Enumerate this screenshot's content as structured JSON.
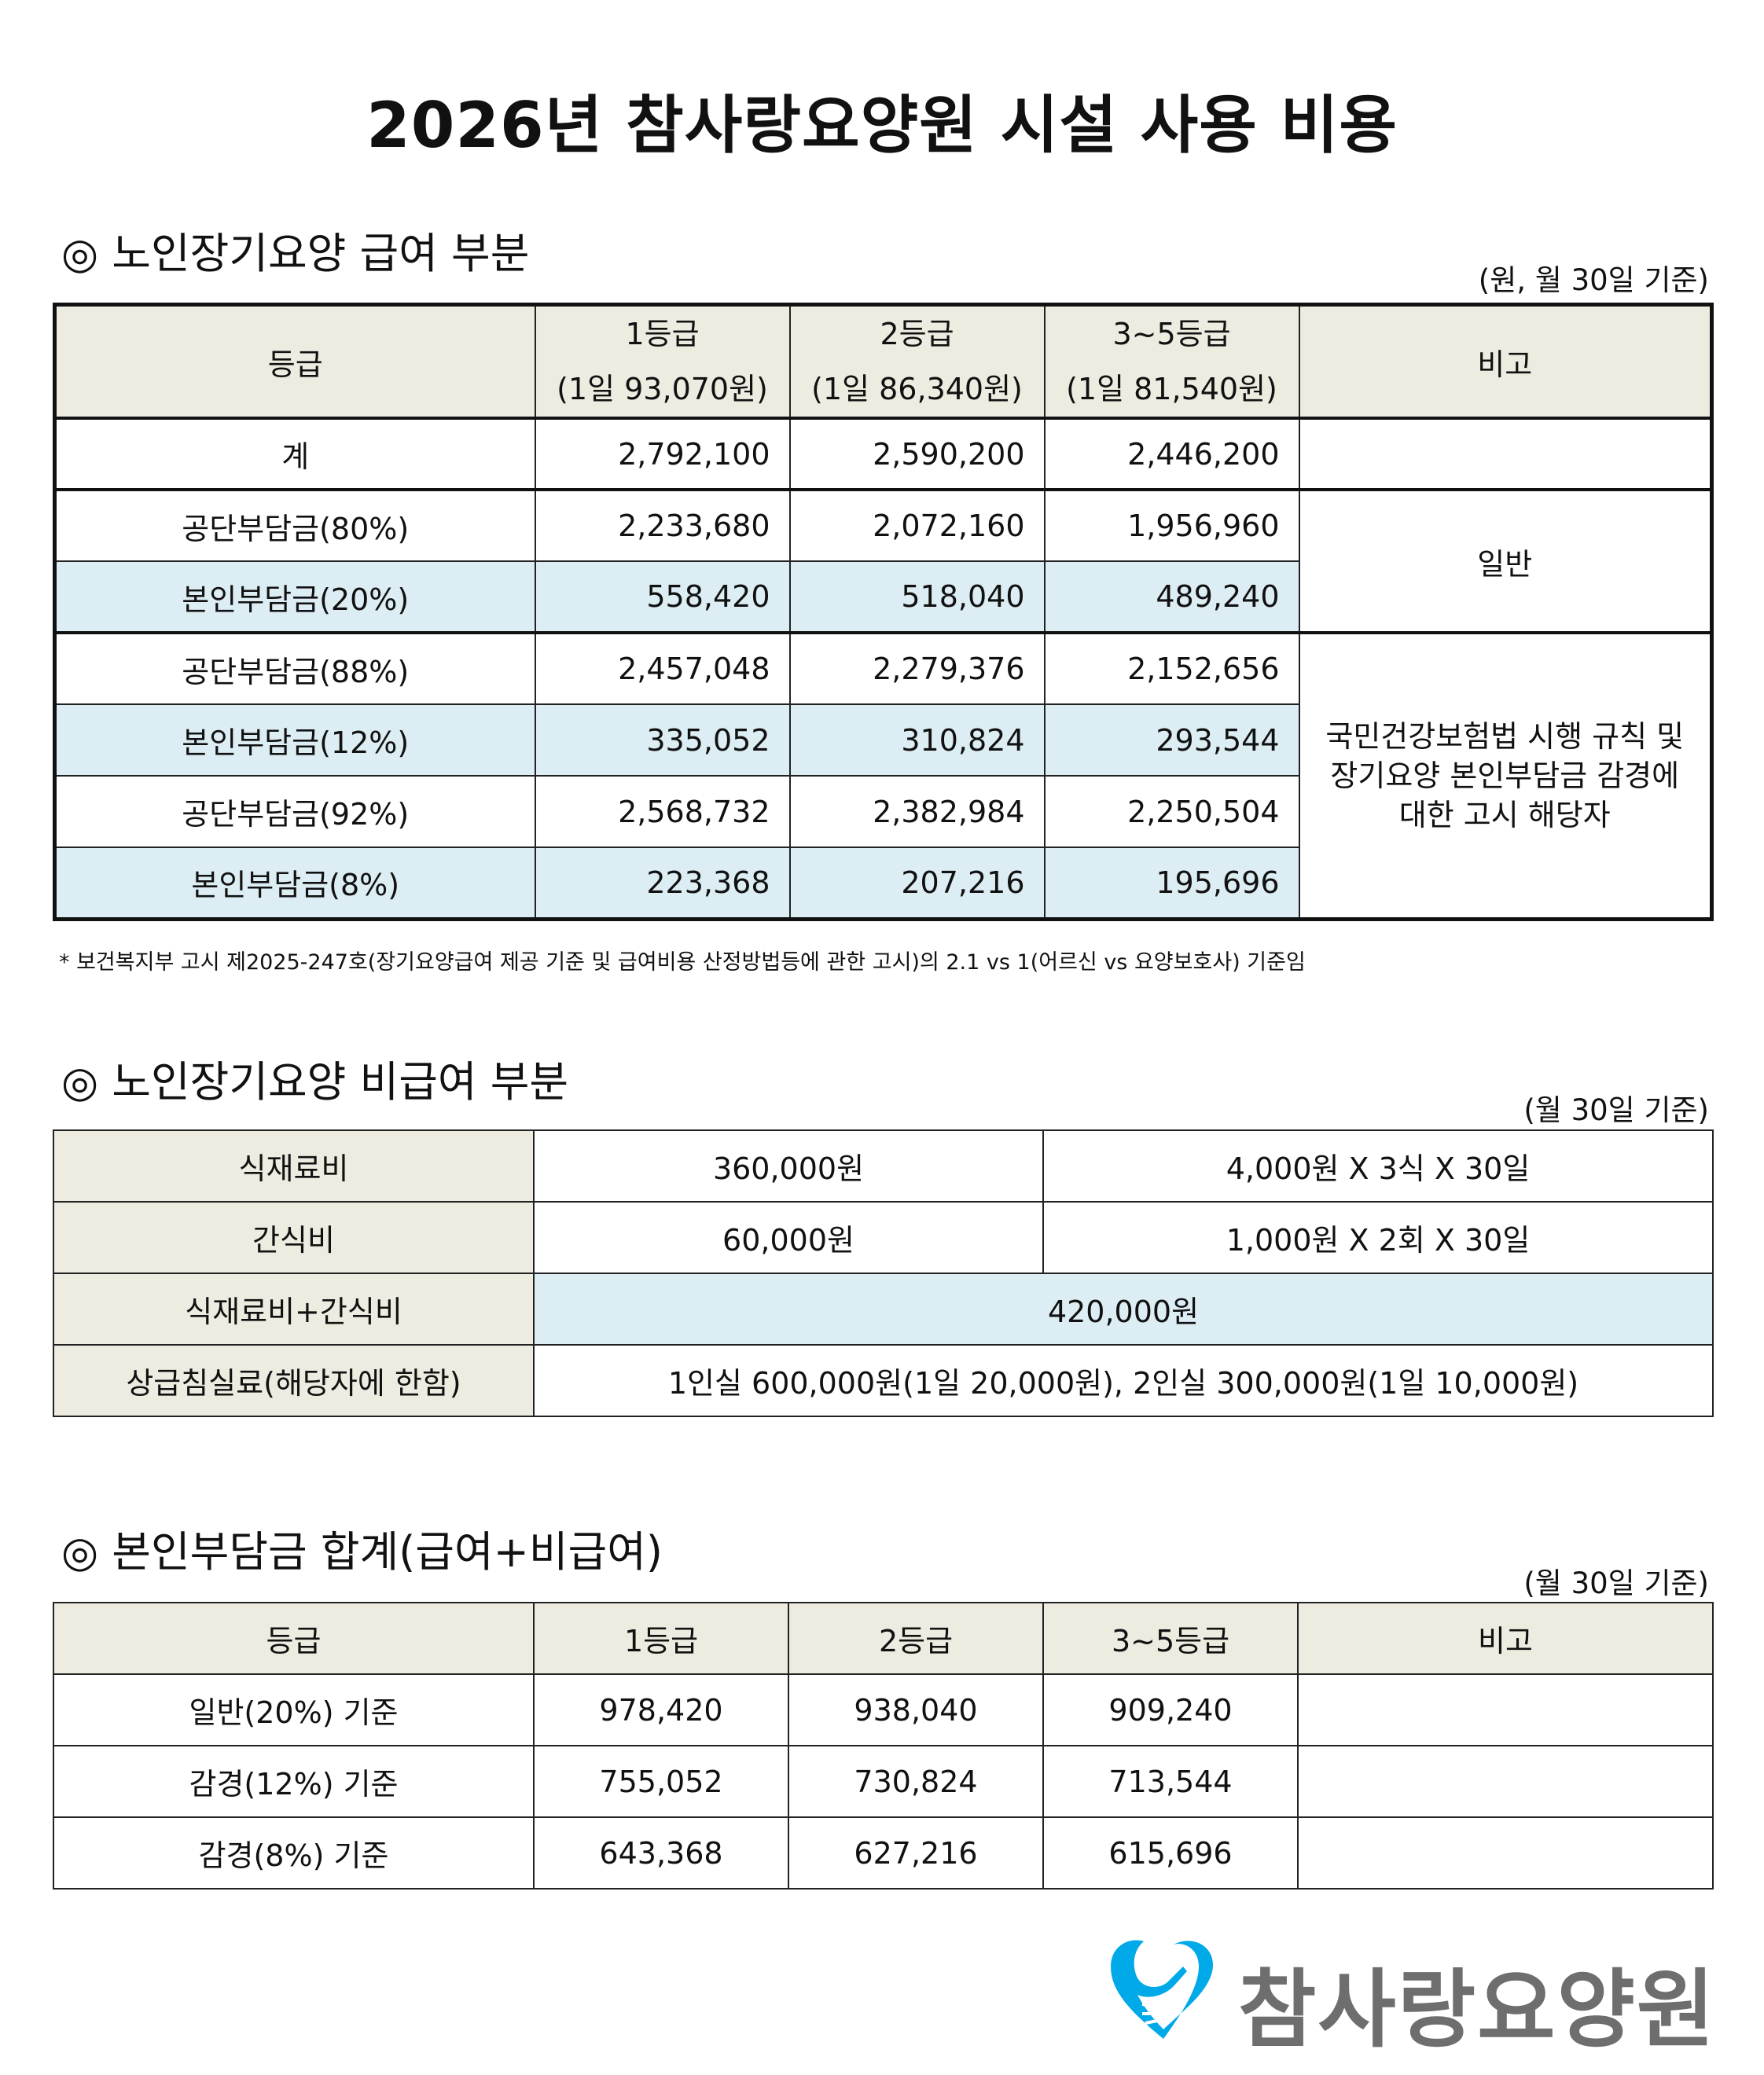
{
  "title": "2026년 참사랑요양원 시설 사용 비용",
  "s1": {
    "heading": "◎ 노인장기요양 급여 부분",
    "unit": "(원, 월 30일 기준)",
    "header": [
      "등급",
      "1등급",
      "(1일 93,070원)",
      "2등급",
      "(1일 86,340원)",
      "3~5등급",
      "(1일 81,540원)",
      "비고"
    ],
    "rows": [
      {
        "label": "계",
        "v": [
          "2,792,100",
          "2,590,200",
          "2,446,200"
        ]
      },
      {
        "label": "공단부담금(80%)",
        "v": [
          "2,233,680",
          "2,072,160",
          "1,956,960"
        ]
      },
      {
        "label": "본인부담금(20%)",
        "v": [
          "558,420",
          "518,040",
          "489,240"
        ]
      },
      {
        "label": "공단부담금(88%)",
        "v": [
          "2,457,048",
          "2,279,376",
          "2,152,656"
        ]
      },
      {
        "label": "본인부담금(12%)",
        "v": [
          "335,052",
          "310,824",
          "293,544"
        ]
      },
      {
        "label": "공단부담금(92%)",
        "v": [
          "2,568,732",
          "2,382,984",
          "2,250,504"
        ]
      },
      {
        "label": "본인부담금(8%)",
        "v": [
          "223,368",
          "207,216",
          "195,696"
        ]
      }
    ],
    "note_general": "일반",
    "note_reduced": "국민건강보험법 시행 규칙 및 장기요양 본인부담금 감경에 대한 고시 해당자",
    "footnote": "* 보건복지부 고시 제2025-247호(장기요양급여 제공 기준 및 급여비용 산정방법등에 관한 고시)의 2.1 vs 1(어르신 vs 요양보호사) 기준임"
  },
  "s2": {
    "heading": "◎ 노인장기요양 비급여 부분",
    "unit": "(월 30일 기준)",
    "rows": [
      {
        "label": "식재료비",
        "amount": "360,000원",
        "calc": "4,000원 X 3식 X 30일"
      },
      {
        "label": "간식비",
        "amount": "60,000원",
        "calc": "1,000원 X 2회 X 30일"
      },
      {
        "label": "식재료비+간식비",
        "amount": "420,000원"
      },
      {
        "label": "상급침실료(해당자에 한함)",
        "amount": "1인실 600,000원(1일 20,000원), 2인실 300,000원(1일 10,000원)"
      }
    ]
  },
  "s3": {
    "heading": "◎ 본인부담금 합계(급여+비급여)",
    "unit": "(월 30일 기준)",
    "header": [
      "등급",
      "1등급",
      "2등급",
      "3~5등급",
      "비고"
    ],
    "rows": [
      {
        "label": "일반(20%) 기준",
        "v": [
          "978,420",
          "938,040",
          "909,240"
        ]
      },
      {
        "label": "감경(12%) 기준",
        "v": [
          "755,052",
          "730,824",
          "713,544"
        ]
      },
      {
        "label": "감경(8%) 기준",
        "v": [
          "643,368",
          "627,216",
          "615,696"
        ]
      }
    ]
  },
  "logo": {
    "text": "참사랑요양원",
    "color": "#00a9e8",
    "text_color": "#6f6e6e"
  },
  "colors": {
    "header_bg": "#eeebe0",
    "highlight_bg": "#dcedf3"
  }
}
